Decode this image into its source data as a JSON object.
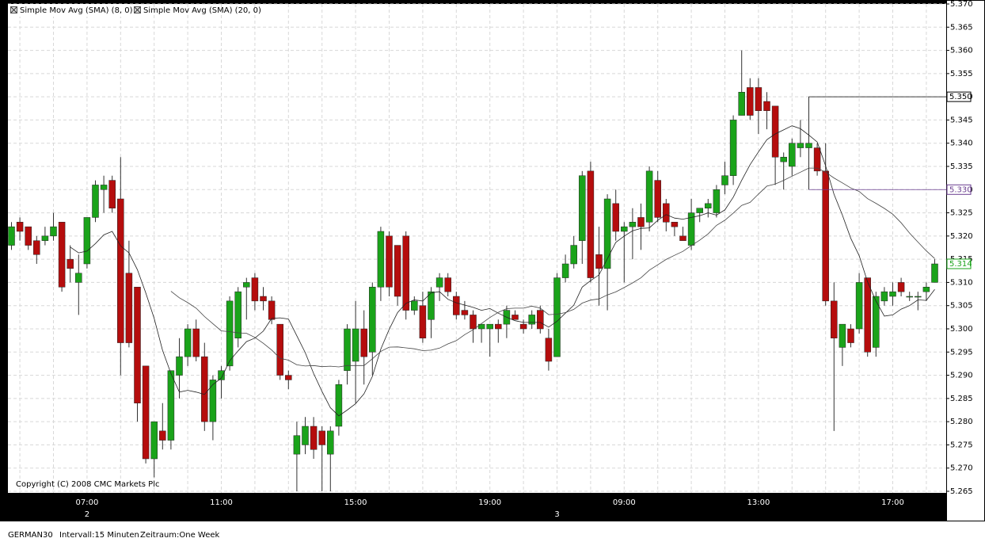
{
  "chart_data": {
    "type": "candlestick",
    "categories": [
      null,
      null,
      null,
      null,
      null,
      null,
      null,
      null,
      null,
      "07:00",
      null,
      null,
      null,
      null,
      null,
      null,
      null,
      null,
      null,
      null,
      null,
      null,
      null,
      null,
      null,
      "11:00",
      null,
      null,
      null,
      null,
      null,
      null,
      null,
      null,
      null,
      null,
      null,
      null,
      null,
      null,
      null,
      "15:00",
      null,
      null,
      null,
      null,
      null,
      null,
      null,
      null,
      null,
      null,
      null,
      null,
      null,
      null,
      null,
      "19:00",
      null,
      null,
      null,
      null,
      null,
      null,
      null,
      null,
      null,
      null,
      null,
      null,
      null,
      null,
      null,
      "09:00",
      null,
      null,
      null,
      null,
      null,
      null,
      null,
      null,
      null,
      null,
      null,
      null,
      null,
      null,
      null,
      "13:00",
      null,
      null,
      null,
      null,
      null,
      null,
      null,
      null,
      null,
      null,
      null,
      null,
      null,
      null,
      null,
      "17:00",
      null,
      null,
      null,
      null,
      null
    ],
    "day_labels": [
      {
        "value": 9,
        "label": "2"
      },
      {
        "value": 65,
        "label": "3"
      }
    ],
    "open": [
      5.318,
      5.323,
      5.322,
      5.319,
      5.319,
      5.32,
      5.323,
      5.315,
      5.31,
      5.314,
      5.324,
      5.33,
      5.332,
      5.328,
      5.312,
      5.309,
      5.292,
      5.272,
      5.278,
      5.276,
      5.29,
      5.294,
      5.3,
      5.294,
      5.28,
      5.289,
      5.292,
      5.298,
      5.309,
      5.311,
      5.307,
      5.306,
      5.301,
      5.29,
      5.273,
      5.275,
      5.279,
      5.278,
      5.273,
      5.279,
      5.291,
      5.293,
      5.3,
      5.295,
      5.309,
      5.32,
      5.318,
      5.32,
      5.304,
      5.305,
      5.302,
      5.309,
      5.311,
      5.307,
      5.304,
      5.303,
      5.3,
      5.3,
      5.301,
      5.301,
      5.303,
      5.301,
      5.301,
      5.304,
      5.298,
      5.294,
      5.311,
      5.314,
      5.319,
      5.334,
      5.316,
      5.313,
      5.327,
      5.321,
      5.322,
      5.324,
      5.323,
      5.332,
      5.327,
      5.323,
      5.32,
      5.318,
      5.325,
      5.326,
      5.325,
      5.331,
      5.333,
      5.346,
      5.352,
      5.352,
      5.349,
      5.348,
      5.336,
      5.335,
      5.339,
      5.339,
      5.339,
      5.334,
      5.306,
      5.296,
      5.3,
      5.3,
      5.311,
      5.296,
      5.306,
      5.307,
      5.31,
      5.307,
      5.307,
      5.308,
      5.31
    ],
    "high": [
      5.323,
      5.324,
      5.322,
      5.32,
      5.322,
      5.325,
      5.323,
      5.318,
      5.316,
      5.324,
      5.332,
      5.333,
      5.333,
      5.337,
      5.319,
      5.309,
      5.292,
      5.28,
      5.284,
      5.291,
      5.298,
      5.301,
      5.302,
      5.297,
      5.29,
      5.292,
      5.307,
      5.309,
      5.311,
      5.312,
      5.309,
      5.307,
      5.301,
      5.291,
      5.28,
      5.281,
      5.281,
      5.279,
      5.279,
      5.289,
      5.301,
      5.306,
      5.304,
      5.31,
      5.322,
      5.321,
      5.318,
      5.321,
      5.307,
      5.308,
      5.309,
      5.312,
      5.312,
      5.308,
      5.306,
      5.304,
      5.301,
      5.301,
      5.302,
      5.305,
      5.304,
      5.302,
      5.304,
      5.305,
      5.3,
      5.312,
      5.316,
      5.32,
      5.334,
      5.336,
      5.322,
      5.329,
      5.33,
      5.323,
      5.326,
      5.327,
      5.335,
      5.334,
      5.328,
      5.323,
      5.322,
      5.328,
      5.326,
      5.328,
      5.331,
      5.336,
      5.346,
      5.36,
      5.354,
      5.354,
      5.351,
      5.348,
      5.338,
      5.341,
      5.345,
      5.35,
      5.34,
      5.34,
      5.31,
      5.3,
      5.301,
      5.312,
      5.311,
      5.308,
      5.309,
      5.31,
      5.311,
      5.308,
      5.308,
      5.31,
      5.315
    ],
    "low": [
      5.317,
      5.319,
      5.317,
      5.314,
      5.318,
      5.319,
      5.308,
      5.31,
      5.303,
      5.313,
      5.323,
      5.325,
      5.325,
      5.29,
      5.296,
      5.28,
      5.271,
      5.268,
      5.274,
      5.274,
      5.285,
      5.292,
      5.293,
      5.278,
      5.276,
      5.285,
      5.291,
      5.296,
      5.302,
      5.304,
      5.304,
      5.301,
      5.289,
      5.287,
      5.265,
      5.273,
      5.272,
      5.265,
      5.265,
      5.277,
      5.288,
      5.284,
      5.288,
      5.29,
      5.306,
      5.307,
      5.305,
      5.302,
      5.303,
      5.297,
      5.298,
      5.306,
      5.307,
      5.302,
      5.302,
      5.297,
      5.297,
      5.294,
      5.297,
      5.298,
      5.302,
      5.299,
      5.3,
      5.299,
      5.291,
      5.294,
      5.31,
      5.313,
      5.314,
      5.31,
      5.305,
      5.304,
      5.319,
      5.31,
      5.315,
      5.317,
      5.321,
      5.323,
      5.321,
      5.32,
      5.319,
      5.317,
      5.323,
      5.324,
      5.324,
      5.329,
      5.331,
      5.346,
      5.345,
      5.342,
      5.343,
      5.331,
      5.33,
      5.333,
      5.337,
      5.33,
      5.333,
      5.305,
      5.278,
      5.292,
      5.296,
      5.299,
      5.294,
      5.294,
      5.305,
      5.305,
      5.307,
      5.306,
      5.304,
      5.306,
      5.31
    ],
    "close": [
      5.322,
      5.321,
      5.318,
      5.316,
      5.32,
      5.322,
      5.309,
      5.313,
      5.312,
      5.324,
      5.331,
      5.331,
      5.326,
      5.297,
      5.297,
      5.284,
      5.272,
      5.28,
      5.276,
      5.291,
      5.294,
      5.3,
      5.294,
      5.28,
      5.289,
      5.291,
      5.306,
      5.308,
      5.31,
      5.306,
      5.306,
      5.302,
      5.29,
      5.289,
      5.277,
      5.279,
      5.274,
      5.275,
      5.278,
      5.288,
      5.3,
      5.3,
      5.294,
      5.309,
      5.321,
      5.309,
      5.307,
      5.304,
      5.306,
      5.298,
      5.308,
      5.311,
      5.308,
      5.303,
      5.303,
      5.3,
      5.301,
      5.301,
      5.3,
      5.304,
      5.302,
      5.3,
      5.303,
      5.3,
      5.293,
      5.311,
      5.314,
      5.318,
      5.333,
      5.311,
      5.313,
      5.328,
      5.321,
      5.322,
      5.323,
      5.322,
      5.334,
      5.324,
      5.323,
      5.322,
      5.319,
      5.325,
      5.326,
      5.327,
      5.33,
      5.333,
      5.345,
      5.351,
      5.346,
      5.347,
      5.347,
      5.337,
      5.337,
      5.34,
      5.34,
      5.34,
      5.334,
      5.306,
      5.298,
      5.301,
      5.297,
      5.31,
      5.295,
      5.307,
      5.308,
      5.308,
      5.308,
      5.307,
      5.307,
      5.309,
      5.314
    ],
    "up_color": "#1aa31a",
    "down_color": "#b50d0d",
    "indicators": [
      {
        "name": "Simple Mov Avg (SMA) (8, 0)",
        "period": 8,
        "color": "#222222"
      },
      {
        "name": "Simple Mov Avg (SMA) (20, 0)",
        "period": 20,
        "color": "#444444"
      }
    ],
    "levels": [
      {
        "value": 5.35,
        "label": "5.350",
        "color": "#000000",
        "line_from": 95
      },
      {
        "value": 5.33,
        "label": "5.330",
        "color": "#6a3d8f",
        "line_from": 95
      },
      {
        "value": 5.314,
        "label": "5.314",
        "color": "#1aa31a"
      }
    ],
    "ylim": [
      5.265,
      5.37
    ],
    "yticks": [
      {
        "value": 5.265,
        "label": "5.265"
      },
      {
        "value": 5.27,
        "label": "5.270"
      },
      {
        "value": 5.275,
        "label": "5.275"
      },
      {
        "value": 5.28,
        "label": "5.280"
      },
      {
        "value": 5.285,
        "label": "5.285"
      },
      {
        "value": 5.29,
        "label": "5.290"
      },
      {
        "value": 5.295,
        "label": "5.295"
      },
      {
        "value": 5.3,
        "label": "5.300"
      },
      {
        "value": 5.305,
        "label": "5.305"
      },
      {
        "value": 5.31,
        "label": "5.310"
      },
      {
        "value": 5.315,
        "label": "5.315"
      },
      {
        "value": 5.32,
        "label": "5.320"
      },
      {
        "value": 5.325,
        "label": "5.325"
      },
      {
        "value": 5.33,
        "label": "5.330"
      },
      {
        "value": 5.335,
        "label": "5.335"
      },
      {
        "value": 5.34,
        "label": "5.340"
      },
      {
        "value": 5.345,
        "label": "5.345"
      },
      {
        "value": 5.35,
        "label": "5.350"
      },
      {
        "value": 5.355,
        "label": "5.355"
      },
      {
        "value": 5.36,
        "label": "5.360"
      },
      {
        "value": 5.365,
        "label": "5.365"
      },
      {
        "value": 5.37,
        "label": "5.370"
      }
    ],
    "grid": true,
    "copyright": "Copyright (C) 2008 CMC Markets Plc"
  },
  "footer": {
    "instrument": "GERMAN30",
    "interval": "Intervall:15 Minuten",
    "period": "Zeitraum:One Week"
  }
}
